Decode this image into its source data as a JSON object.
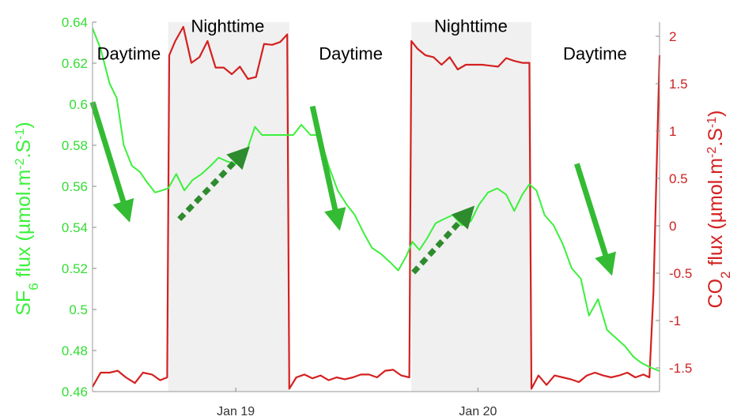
{
  "colors": {
    "sf6": "#3cf03c",
    "co2": "#d42020",
    "left_tick": "#33dd33",
    "right_tick": "#cc2222",
    "night_band": "#f0f0f0",
    "arrow_solid": "#33bb33",
    "arrow_dashed": "#2e8b2e"
  },
  "axes": {
    "left_title": {
      "prefix": "SF",
      "sub": "6",
      "suffix": " flux (µmol.m",
      "sup1": "-2",
      "mid": ".S",
      "sup2": "-1",
      "end": ")"
    },
    "right_title": {
      "prefix": "CO",
      "sub": "2",
      "suffix": " flux (µmol.m",
      "sup1": "-2",
      "mid": ".S",
      "sup2": "-1",
      "end": ")"
    }
  },
  "chart_data": {
    "type": "line",
    "x_unit": "hours since Jan 18 00:00",
    "xlim": [
      9.8,
      66
    ],
    "x_ticks": [
      {
        "x": 24,
        "label": "Jan 19"
      },
      {
        "x": 48,
        "label": "Jan 20"
      }
    ],
    "y_left": {
      "lim": [
        0.46,
        0.64
      ],
      "ticks": [
        0.46,
        0.48,
        0.5,
        0.52,
        0.54,
        0.56,
        0.58,
        0.6,
        0.62,
        0.64
      ],
      "tick_labels": [
        "0.46",
        "0.48",
        "0.5",
        "0.52",
        "0.54",
        "0.56",
        "0.58",
        "0.6",
        "0.62",
        "0.64"
      ]
    },
    "y_right": {
      "lim": [
        -1.75,
        2.15
      ],
      "ticks": [
        -1.5,
        -1,
        -0.5,
        0,
        0.5,
        1,
        1.5,
        2
      ],
      "tick_labels": [
        "-1.5",
        "-1",
        "-0.5",
        "0",
        "0.5",
        "1",
        "1.5",
        "2"
      ]
    },
    "night_periods": [
      [
        17.3,
        29.3
      ],
      [
        41.4,
        53.3
      ]
    ],
    "period_labels": [
      {
        "text": "Daytime",
        "x": 13.4,
        "y_frac": 0.055
      },
      {
        "text": "Nighttime",
        "x": 23.2,
        "y_frac": -0.02
      },
      {
        "text": "Daytime",
        "x": 35.4,
        "y_frac": 0.055
      },
      {
        "text": "Nighttime",
        "x": 47.3,
        "y_frac": -0.02
      },
      {
        "text": "Daytime",
        "x": 59.6,
        "y_frac": 0.055
      }
    ],
    "series": [
      {
        "name": "SF6",
        "axis": "left",
        "x": [
          9.8,
          10.6,
          11.5,
          12.2,
          12.9,
          13.7,
          14.5,
          15.2,
          16.0,
          16.7,
          17.3,
          18.1,
          18.9,
          19.7,
          20.6,
          21.5,
          22.3,
          23.2,
          24.1,
          25.0,
          25.9,
          26.6,
          27.4,
          28.2,
          29.0,
          29.7,
          30.5,
          31.4,
          32.3,
          33.2,
          34.1,
          35.0,
          35.8,
          36.7,
          37.5,
          38.4,
          39.3,
          40.1,
          40.9,
          41.5,
          42.2,
          43.0,
          43.8,
          44.6,
          45.5,
          46.4,
          47.3,
          48.1,
          49.0,
          49.9,
          50.8,
          51.6,
          52.4,
          53.1,
          53.8,
          54.6,
          55.5,
          56.4,
          57.3,
          58.2,
          59.0,
          59.9,
          60.8,
          61.7,
          62.6,
          63.4,
          64.2,
          65.0,
          66.0
        ],
        "values": [
          0.637,
          0.627,
          0.61,
          0.603,
          0.58,
          0.57,
          0.567,
          0.562,
          0.557,
          0.558,
          0.559,
          0.566,
          0.558,
          0.563,
          0.566,
          0.57,
          0.574,
          0.572,
          0.571,
          0.576,
          0.589,
          0.585,
          0.585,
          0.585,
          0.585,
          0.585,
          0.59,
          0.585,
          0.585,
          0.57,
          0.558,
          0.551,
          0.546,
          0.537,
          0.53,
          0.527,
          0.523,
          0.519,
          0.526,
          0.533,
          0.529,
          0.535,
          0.542,
          0.544,
          0.546,
          0.541,
          0.543,
          0.551,
          0.557,
          0.559,
          0.556,
          0.548,
          0.556,
          0.561,
          0.558,
          0.546,
          0.541,
          0.532,
          0.52,
          0.515,
          0.497,
          0.505,
          0.49,
          0.486,
          0.482,
          0.477,
          0.474,
          0.472,
          0.47
        ]
      },
      {
        "name": "CO2",
        "axis": "right",
        "x": [
          9.8,
          10.6,
          11.5,
          12.3,
          13.1,
          14.0,
          14.8,
          15.7,
          16.5,
          17.2,
          17.4,
          18.0,
          18.8,
          19.6,
          20.4,
          21.2,
          22.0,
          22.8,
          23.6,
          24.4,
          25.2,
          26.0,
          26.8,
          27.6,
          28.4,
          29.1,
          29.3,
          30.0,
          30.8,
          31.6,
          32.4,
          33.2,
          34.0,
          34.8,
          35.6,
          36.4,
          37.2,
          38.0,
          38.8,
          39.6,
          40.4,
          41.2,
          41.4,
          42.0,
          42.8,
          43.6,
          44.4,
          45.2,
          46.0,
          46.8,
          47.6,
          48.4,
          49.2,
          50.0,
          50.8,
          51.6,
          52.4,
          53.1,
          53.3,
          54.0,
          54.8,
          55.6,
          56.4,
          57.2,
          58.0,
          58.8,
          59.6,
          60.4,
          61.2,
          62.0,
          62.8,
          63.6,
          64.4,
          65.0,
          65.4,
          66.0
        ],
        "values": [
          -1.7,
          -1.55,
          -1.55,
          -1.53,
          -1.6,
          -1.66,
          -1.55,
          -1.57,
          -1.63,
          -1.6,
          1.8,
          1.95,
          2.1,
          1.72,
          1.78,
          1.95,
          1.67,
          1.67,
          1.6,
          1.68,
          1.55,
          1.57,
          1.92,
          1.91,
          1.94,
          2.02,
          -1.72,
          -1.6,
          -1.57,
          -1.61,
          -1.58,
          -1.63,
          -1.6,
          -1.62,
          -1.6,
          -1.57,
          -1.57,
          -1.6,
          -1.53,
          -1.52,
          -1.58,
          -1.6,
          1.95,
          1.87,
          1.8,
          1.78,
          1.7,
          1.78,
          1.65,
          1.7,
          1.7,
          1.7,
          1.69,
          1.68,
          1.77,
          1.74,
          1.72,
          1.72,
          -1.72,
          -1.58,
          -1.68,
          -1.58,
          -1.6,
          -1.62,
          -1.65,
          -1.58,
          -1.55,
          -1.58,
          -1.6,
          -1.58,
          -1.55,
          -1.6,
          -1.57,
          -1.6,
          -0.7,
          1.8
        ]
      }
    ],
    "arrows": [
      {
        "style": "solid",
        "from": [
          9.8,
          0.601
        ],
        "to": [
          13.2,
          0.547
        ]
      },
      {
        "style": "dashed",
        "from": [
          18.4,
          0.544
        ],
        "to": [
          24.7,
          0.576
        ]
      },
      {
        "style": "solid",
        "from": [
          31.6,
          0.599
        ],
        "to": [
          34.1,
          0.543
        ]
      },
      {
        "style": "dashed",
        "from": [
          41.6,
          0.518
        ],
        "to": [
          47.0,
          0.547
        ]
      },
      {
        "style": "solid",
        "from": [
          57.8,
          0.571
        ],
        "to": [
          61.0,
          0.521
        ]
      }
    ]
  }
}
